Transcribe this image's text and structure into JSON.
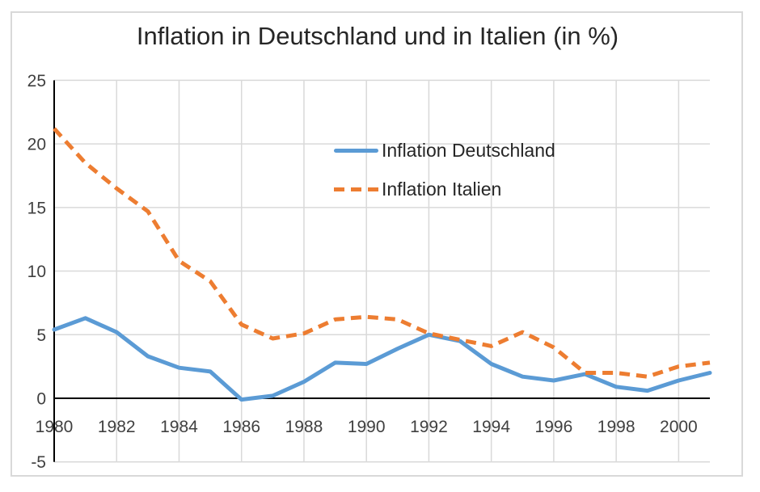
{
  "chart_data": {
    "type": "line",
    "title": "Inflation in Deutschland und in Italien (in %)",
    "x": [
      1980,
      1981,
      1982,
      1983,
      1984,
      1985,
      1986,
      1987,
      1988,
      1989,
      1990,
      1991,
      1992,
      1993,
      1994,
      1995,
      1996,
      1997,
      1998,
      1999,
      2000,
      2001
    ],
    "series": [
      {
        "name": "Inflation Deutschland",
        "color": "#5B9BD5",
        "style": "solid",
        "values": [
          5.4,
          6.3,
          5.2,
          3.3,
          2.4,
          2.1,
          -0.1,
          0.2,
          1.3,
          2.8,
          2.7,
          3.9,
          5.0,
          4.5,
          2.7,
          1.7,
          1.4,
          1.9,
          0.9,
          0.6,
          1.4,
          2.0
        ]
      },
      {
        "name": "Inflation Italien",
        "color": "#ED7D31",
        "style": "dashed",
        "values": [
          21.2,
          18.5,
          16.5,
          14.7,
          10.8,
          9.2,
          5.8,
          4.7,
          5.1,
          6.2,
          6.4,
          6.2,
          5.1,
          4.6,
          4.1,
          5.2,
          4.0,
          2.0,
          2.0,
          1.7,
          2.5,
          2.8
        ]
      }
    ],
    "x_ticks": [
      "1980",
      "1982",
      "1984",
      "1986",
      "1988",
      "1990",
      "1992",
      "1994",
      "1996",
      "1998",
      "2000"
    ],
    "y_ticks": [
      25,
      20,
      15,
      10,
      5,
      0,
      -5
    ],
    "xlim": [
      1980,
      2001
    ],
    "ylim": [
      -5,
      25
    ],
    "grid": true,
    "legend_position": "inside-top-center",
    "colors": {
      "grid": "#D9D9D9",
      "axis": "#000000",
      "tick_text": "#404040",
      "title_text": "#262626",
      "frame_border": "#D9D9D9",
      "background": "#FFFFFF"
    }
  }
}
